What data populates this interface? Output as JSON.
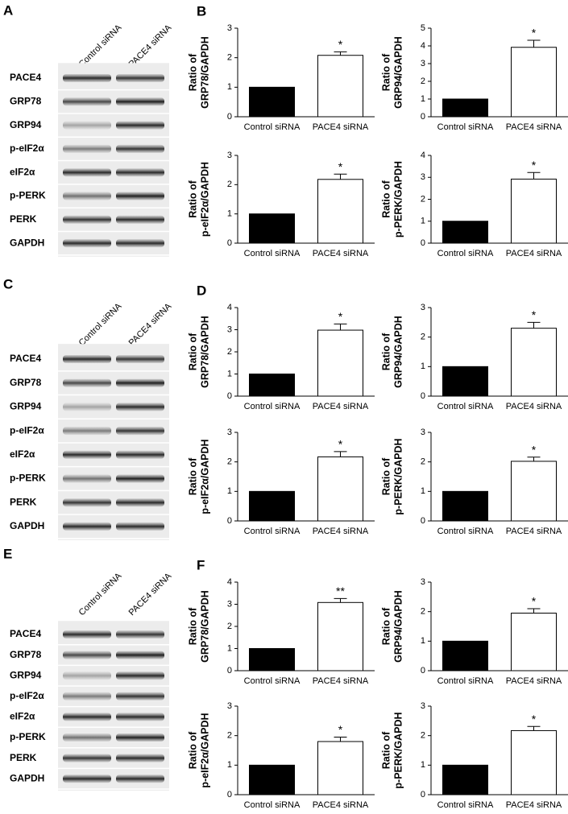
{
  "blots": [
    {
      "panel": "A",
      "lanes": [
        "Control siRNA",
        "PACE4 siRNA"
      ],
      "rows": [
        "PACE4",
        "GRP78",
        "GRP94",
        "p-eIF2α",
        "eIF2α",
        "p-PERK",
        "PERK",
        "GAPDH"
      ]
    },
    {
      "panel": "C",
      "lanes": [
        "Control siRNA",
        "PACE4 siRNA"
      ],
      "rows": [
        "PACE4",
        "GRP78",
        "GRP94",
        "p-eIF2α",
        "eIF2α",
        "p-PERK",
        "PERK",
        "GAPDH"
      ]
    },
    {
      "panel": "E",
      "lanes": [
        "Control siRNA",
        "PACE4 siRNA"
      ],
      "rows": [
        "PACE4",
        "GRP78",
        "GRP94",
        "p-eIF2α",
        "eIF2α",
        "p-PERK",
        "PERK",
        "GAPDH"
      ]
    }
  ],
  "chart_panels": [
    "B",
    "D",
    "F"
  ],
  "chart_data": [
    {
      "type": "bar",
      "ylabel": [
        "Ratio of",
        "GRP78/GAPDH"
      ],
      "categories": [
        "Control siRNA",
        "PACE4 siRNA"
      ],
      "values": [
        1,
        2.08
      ],
      "errors": [
        null,
        0.12
      ],
      "annotation": "*",
      "colors": [
        "#000000",
        "#ffffff"
      ],
      "ylim": [
        0,
        3
      ],
      "yticks": [
        0,
        1,
        2,
        3
      ]
    },
    {
      "type": "bar",
      "ylabel": [
        "Ratio of",
        "GRP94/GAPDH"
      ],
      "categories": [
        "Control siRNA",
        "PACE4 siRNA"
      ],
      "values": [
        1,
        3.92
      ],
      "errors": [
        null,
        0.4
      ],
      "annotation": "*",
      "colors": [
        "#000000",
        "#ffffff"
      ],
      "ylim": [
        0,
        5
      ],
      "yticks": [
        0,
        1,
        2,
        3,
        4,
        5
      ]
    },
    {
      "type": "bar",
      "ylabel": [
        "Ratio of",
        "p-eIF2α/GAPDH"
      ],
      "categories": [
        "Control siRNA",
        "PACE4 siRNA"
      ],
      "values": [
        1,
        2.18
      ],
      "errors": [
        null,
        0.18
      ],
      "annotation": "*",
      "colors": [
        "#000000",
        "#ffffff"
      ],
      "ylim": [
        0,
        3
      ],
      "yticks": [
        0,
        1,
        2,
        3
      ]
    },
    {
      "type": "bar",
      "ylabel": [
        "Ratio of",
        "p-PERK/GAPDH"
      ],
      "categories": [
        "Control siRNA",
        "PACE4 siRNA"
      ],
      "values": [
        1,
        2.92
      ],
      "errors": [
        null,
        0.3
      ],
      "annotation": "*",
      "colors": [
        "#000000",
        "#ffffff"
      ],
      "ylim": [
        0,
        4
      ],
      "yticks": [
        0,
        1,
        2,
        3,
        4
      ]
    },
    {
      "type": "bar",
      "ylabel": [
        "Ratio of",
        "GRP78/GAPDH"
      ],
      "categories": [
        "Control siRNA",
        "PACE4 siRNA"
      ],
      "values": [
        1,
        2.98
      ],
      "errors": [
        null,
        0.28
      ],
      "annotation": "*",
      "colors": [
        "#000000",
        "#ffffff"
      ],
      "ylim": [
        0,
        4
      ],
      "yticks": [
        0,
        1,
        2,
        3,
        4
      ]
    },
    {
      "type": "bar",
      "ylabel": [
        "Ratio of",
        "GRP94/GAPDH"
      ],
      "categories": [
        "Control siRNA",
        "PACE4 siRNA"
      ],
      "values": [
        1,
        2.3
      ],
      "errors": [
        null,
        0.2
      ],
      "annotation": "*",
      "colors": [
        "#000000",
        "#ffffff"
      ],
      "ylim": [
        0,
        3
      ],
      "yticks": [
        0,
        1,
        2,
        3
      ]
    },
    {
      "type": "bar",
      "ylabel": [
        "Ratio of",
        "p-eIF2α/GAPDH"
      ],
      "categories": [
        "Control siRNA",
        "PACE4 siRNA"
      ],
      "values": [
        1,
        2.17
      ],
      "errors": [
        null,
        0.18
      ],
      "annotation": "*",
      "colors": [
        "#000000",
        "#ffffff"
      ],
      "ylim": [
        0,
        3
      ],
      "yticks": [
        0,
        1,
        2,
        3
      ]
    },
    {
      "type": "bar",
      "ylabel": [
        "Ratio of",
        "p-PERK/GAPDH"
      ],
      "categories": [
        "Control siRNA",
        "PACE4 siRNA"
      ],
      "values": [
        1,
        2.02
      ],
      "errors": [
        null,
        0.14
      ],
      "annotation": "*",
      "colors": [
        "#000000",
        "#ffffff"
      ],
      "ylim": [
        0,
        3
      ],
      "yticks": [
        0,
        1,
        2,
        3
      ]
    },
    {
      "type": "bar",
      "ylabel": [
        "Ratio of",
        "GRP78/GAPDH"
      ],
      "categories": [
        "Control siRNA",
        "PACE4 siRNA"
      ],
      "values": [
        1,
        3.08
      ],
      "errors": [
        null,
        0.18
      ],
      "annotation": "**",
      "colors": [
        "#000000",
        "#ffffff"
      ],
      "ylim": [
        0,
        4
      ],
      "yticks": [
        0,
        1,
        2,
        3,
        4
      ]
    },
    {
      "type": "bar",
      "ylabel": [
        "Ratio of",
        "GRP94/GAPDH"
      ],
      "categories": [
        "Control siRNA",
        "PACE4 siRNA"
      ],
      "values": [
        1,
        1.95
      ],
      "errors": [
        null,
        0.15
      ],
      "annotation": "*",
      "colors": [
        "#000000",
        "#ffffff"
      ],
      "ylim": [
        0,
        3
      ],
      "yticks": [
        0,
        1,
        2,
        3
      ]
    },
    {
      "type": "bar",
      "ylabel": [
        "Ratio of",
        "p-eIF2α/GAPDH"
      ],
      "categories": [
        "Control siRNA",
        "PACE4 siRNA"
      ],
      "values": [
        1,
        1.8
      ],
      "errors": [
        null,
        0.15
      ],
      "annotation": "*",
      "colors": [
        "#000000",
        "#ffffff"
      ],
      "ylim": [
        0,
        3
      ],
      "yticks": [
        0,
        1,
        2,
        3
      ]
    },
    {
      "type": "bar",
      "ylabel": [
        "Ratio of",
        "p-PERK/GAPDH"
      ],
      "categories": [
        "Control siRNA",
        "PACE4 siRNA"
      ],
      "values": [
        1,
        2.17
      ],
      "errors": [
        null,
        0.14
      ],
      "annotation": "*",
      "colors": [
        "#000000",
        "#ffffff"
      ],
      "ylim": [
        0,
        3
      ],
      "yticks": [
        0,
        1,
        2,
        3
      ]
    }
  ]
}
